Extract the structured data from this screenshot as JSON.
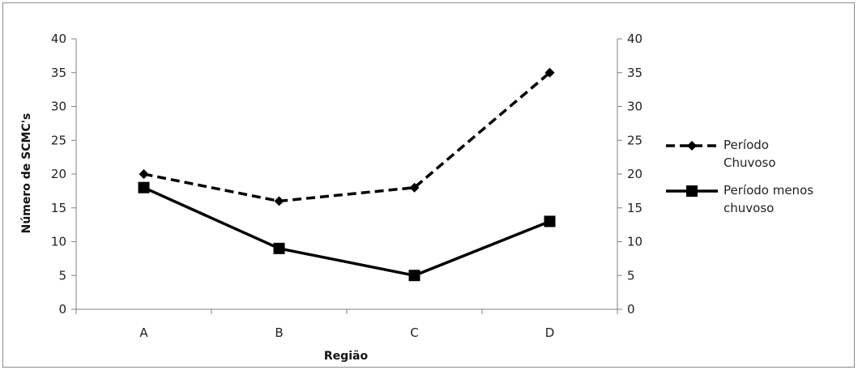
{
  "chart_data": {
    "type": "line",
    "title": "",
    "xlabel": "Região",
    "ylabel": "Número de SCMC's",
    "categories": [
      "A",
      "B",
      "C",
      "D"
    ],
    "ylim": [
      0,
      40
    ],
    "yticks": [
      "0",
      "5",
      "10",
      "15",
      "20",
      "25",
      "30",
      "35",
      "40"
    ],
    "secondary_yticks": [
      "0",
      "5",
      "10",
      "15",
      "20",
      "25",
      "30",
      "35",
      "40"
    ],
    "grid": false,
    "legend_position": "right",
    "series": [
      {
        "name": "Período Chuvoso",
        "name_lines": [
          "Período",
          "Chuvoso"
        ],
        "values": [
          20,
          16,
          18,
          35
        ],
        "line_style": "dashed",
        "marker": "diamond",
        "color": "#000000"
      },
      {
        "name": "Período menos chuvoso",
        "name_lines": [
          "Período menos",
          "chuvoso"
        ],
        "values": [
          18,
          9,
          5,
          13
        ],
        "line_style": "solid",
        "marker": "square",
        "color": "#000000"
      }
    ]
  }
}
